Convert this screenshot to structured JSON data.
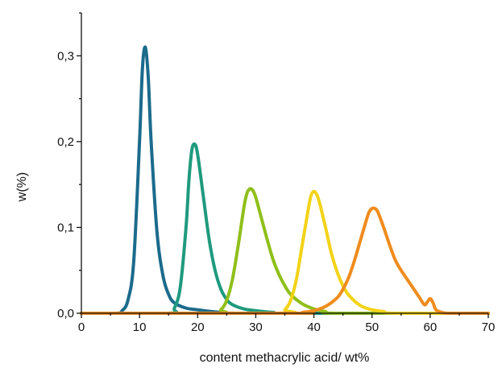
{
  "chart_data": {
    "type": "line",
    "xlabel": "content methacrylic acid/ wt%",
    "ylabel": "w(%)",
    "xlim": [
      0,
      70
    ],
    "ylim": [
      0,
      0.35
    ],
    "x_ticks": [
      0,
      10,
      20,
      30,
      40,
      50,
      60,
      70
    ],
    "x_tick_labels": [
      "0",
      "10",
      "20",
      "30",
      "40",
      "50",
      "60",
      "70"
    ],
    "y_ticks": [
      0,
      0.1,
      0.2,
      0.3
    ],
    "y_tick_labels": [
      "0,0",
      "0,1",
      "0,2",
      "0,3"
    ],
    "grid": false,
    "legend": false,
    "series": [
      {
        "color": "#1b6b8c",
        "x": [
          0,
          6,
          7,
          8,
          9,
          10,
          10.5,
          11,
          11.5,
          12,
          13,
          14,
          15,
          16,
          18,
          20,
          24,
          30,
          70
        ],
        "y": [
          0,
          0,
          0.003,
          0.015,
          0.06,
          0.2,
          0.285,
          0.31,
          0.275,
          0.2,
          0.095,
          0.045,
          0.022,
          0.012,
          0.006,
          0.004,
          0.001,
          0,
          0
        ]
      },
      {
        "color": "#1f9a7e",
        "x": [
          0,
          15,
          16,
          17,
          18,
          18.5,
          19,
          19.5,
          20,
          21,
          22,
          23,
          24,
          25,
          26,
          28,
          30,
          33,
          36,
          70
        ],
        "y": [
          0,
          0,
          0.006,
          0.03,
          0.1,
          0.155,
          0.19,
          0.197,
          0.185,
          0.135,
          0.085,
          0.05,
          0.028,
          0.016,
          0.01,
          0.005,
          0.003,
          0.001,
          0,
          0
        ]
      },
      {
        "color": "#8fbf1a",
        "x": [
          0,
          23,
          24,
          25,
          26,
          27,
          28,
          28.5,
          29,
          29.5,
          30,
          31,
          32,
          33,
          34,
          35,
          36,
          38,
          40,
          42,
          44,
          70
        ],
        "y": [
          0,
          0,
          0.004,
          0.015,
          0.04,
          0.08,
          0.125,
          0.14,
          0.145,
          0.143,
          0.135,
          0.11,
          0.085,
          0.062,
          0.045,
          0.032,
          0.022,
          0.011,
          0.005,
          0.002,
          0,
          0
        ]
      },
      {
        "color": "#f2d318",
        "x": [
          0,
          34,
          35,
          36,
          37,
          38,
          39,
          39.5,
          40,
          40.5,
          41,
          42,
          43,
          44,
          45,
          46,
          48,
          50,
          52,
          54,
          70
        ],
        "y": [
          0,
          0,
          0.004,
          0.015,
          0.04,
          0.08,
          0.12,
          0.137,
          0.142,
          0.138,
          0.128,
          0.1,
          0.07,
          0.048,
          0.032,
          0.021,
          0.009,
          0.004,
          0.002,
          0,
          0
        ]
      },
      {
        "color": "#ef8c1e",
        "x": [
          0,
          37,
          38,
          40,
          42,
          44,
          45,
          46,
          47,
          48,
          49,
          49.5,
          50,
          50.5,
          51,
          52,
          53,
          54,
          55,
          56,
          57,
          58,
          59,
          59.5,
          60,
          60.5,
          61,
          62,
          63,
          65,
          70
        ],
        "y": [
          0,
          0,
          0.001,
          0.003,
          0.008,
          0.018,
          0.028,
          0.042,
          0.062,
          0.085,
          0.108,
          0.118,
          0.122,
          0.122,
          0.118,
          0.1,
          0.08,
          0.062,
          0.05,
          0.04,
          0.03,
          0.02,
          0.01,
          0.013,
          0.017,
          0.012,
          0.004,
          0.001,
          0,
          0,
          0
        ]
      }
    ]
  }
}
